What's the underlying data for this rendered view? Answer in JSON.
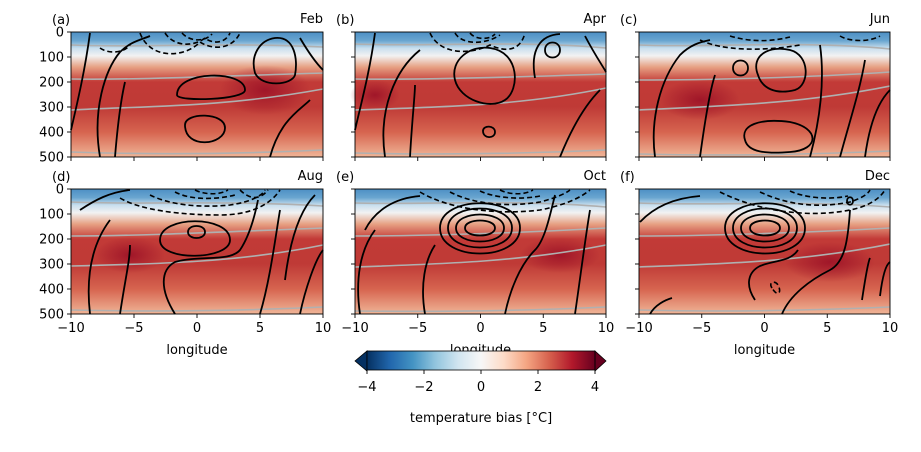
{
  "chart_data": {
    "type": "heatmap",
    "panels": [
      {
        "tag": "(a)",
        "month": "Feb",
        "negative_lobes": [
          [
            0,
            40,
            4,
            2
          ]
        ],
        "positive_lobes": [
          [
            0,
            200,
            1,
            2
          ]
        ]
      },
      {
        "tag": "(b)",
        "month": "Apr",
        "negative_lobes": [
          [
            2,
            30,
            3,
            2
          ]
        ],
        "positive_lobes": [
          [
            0,
            200,
            1,
            2
          ]
        ]
      },
      {
        "tag": "(c)",
        "month": "Jun",
        "negative_lobes": [
          [
            4,
            25,
            3,
            2
          ]
        ],
        "positive_lobes": [
          [
            -2,
            150,
            1,
            2
          ]
        ]
      },
      {
        "tag": "(d)",
        "month": "Aug",
        "negative_lobes": [
          [
            2,
            50,
            5,
            2
          ]
        ],
        "positive_lobes": [
          [
            0,
            175,
            3,
            2
          ]
        ]
      },
      {
        "tag": "(e)",
        "month": "Oct",
        "negative_lobes": [
          [
            3,
            55,
            5,
            2
          ]
        ],
        "positive_lobes": [
          [
            0,
            180,
            4,
            2
          ]
        ]
      },
      {
        "tag": "(f)",
        "month": "Dec",
        "negative_lobes": [
          [
            4,
            60,
            5,
            2
          ]
        ],
        "positive_lobes": [
          [
            0,
            180,
            5,
            2
          ]
        ]
      }
    ],
    "x_range": [
      -10,
      10
    ],
    "x_ticks": [
      -10,
      -5,
      0,
      5,
      10
    ],
    "x_tick_labels": [
      "−10",
      "−5",
      "0",
      "5",
      "10"
    ],
    "y_range": [
      0,
      500
    ],
    "y_ticks": [
      0,
      100,
      200,
      300,
      400,
      500
    ],
    "y_tick_labels": [
      "0",
      "100",
      "200",
      "300",
      "400",
      "500"
    ],
    "xlabel": "longitude",
    "colorbar": {
      "label": "temperature bias [°C]",
      "range": [
        -4,
        4
      ],
      "ticks": [
        -4,
        -2,
        0,
        2,
        4
      ],
      "tick_labels": [
        "−4",
        "−2",
        "0",
        "2",
        "4"
      ],
      "extend": "both",
      "colormap": "RdBu_r"
    },
    "gray_contour_depths": [
      60,
      190,
      310,
      490
    ],
    "grid": false
  }
}
